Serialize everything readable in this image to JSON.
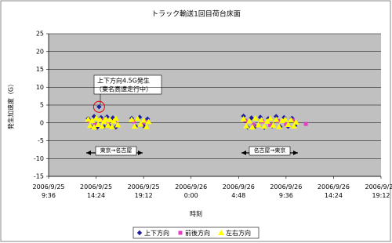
{
  "chart_data": {
    "type": "scatter",
    "title": "トラック輸送1回目荷台床面",
    "x_label": "時刻",
    "y_label": "発生加速度（G）",
    "annotations": [
      "上下方向4.5G発生",
      "（東名高速走行中）",
      "東京→名古屋",
      "名古屋→東京"
    ],
    "xlim": [
      9.6,
      43.2
    ],
    "xticks": [
      {
        "value": 9.6,
        "label": "2006/9/25\n9:36"
      },
      {
        "value": 14.4,
        "label": "2006/9/25\n14:24"
      },
      {
        "value": 19.2,
        "label": "2006/9/25\n19:12"
      },
      {
        "value": 24,
        "label": "2006/9/26\n0:00"
      },
      {
        "value": 28.8,
        "label": "2006/9/26\n4:48"
      },
      {
        "value": 33.6,
        "label": "2006/9/26\n9:36"
      },
      {
        "value": 38.4,
        "label": "2006/9/26\n14:24"
      },
      {
        "value": 43.2,
        "label": "2006/9/26\n19:12"
      }
    ],
    "ylim": [
      -15,
      25
    ],
    "yticks": [
      -15,
      -10,
      -5,
      0,
      5,
      10,
      15,
      20,
      25
    ],
    "grid": true,
    "legend": "bottom",
    "series": [
      {
        "name": "上下方向",
        "color": "#1f1f9f",
        "marker": "diamond",
        "x": [
          13.6,
          13.9,
          14.2,
          14.5,
          14.7,
          14.9,
          15.2,
          15.5,
          15.8,
          16.1,
          16.4,
          18.0,
          18.4,
          18.8,
          19.2,
          19.6,
          29.3,
          29.7,
          30.1,
          30.5,
          31.0,
          31.4,
          31.8,
          32.2,
          32.6,
          33.0,
          33.4,
          33.8,
          34.2,
          34.5
        ],
        "values": [
          1.2,
          -1.0,
          1.8,
          -1.3,
          4.5,
          1.5,
          -1.1,
          1.7,
          -0.9,
          1.4,
          -1.2,
          1.3,
          -1.0,
          1.6,
          -0.8,
          1.1,
          1.9,
          -1.2,
          1.4,
          -1.0,
          1.6,
          -1.3,
          1.2,
          -0.9,
          1.8,
          -1.1,
          1.5,
          -1.0,
          1.3,
          -0.8
        ]
      },
      {
        "name": "前後方向",
        "color": "#e040c0",
        "marker": "square",
        "x": [
          13.7,
          14.3,
          15.0,
          15.6,
          16.3,
          18.2,
          19.0,
          19.5,
          29.5,
          30.3,
          31.2,
          32.0,
          32.8,
          33.6,
          34.3,
          35.6
        ],
        "values": [
          0.5,
          -0.6,
          0.7,
          -0.4,
          0.6,
          0.4,
          -0.5,
          0.3,
          0.6,
          -0.5,
          0.4,
          -0.6,
          0.5,
          -0.4,
          0.7,
          -0.3
        ]
      },
      {
        "name": "左右方向",
        "color": "#ffff00",
        "marker": "triangle",
        "x": [
          13.6,
          13.8,
          14.0,
          14.2,
          14.4,
          14.6,
          14.8,
          15.0,
          15.2,
          15.4,
          15.6,
          15.8,
          16.0,
          16.2,
          16.4,
          16.6,
          18.0,
          18.3,
          18.6,
          18.9,
          19.2,
          19.5,
          19.7,
          29.3,
          29.6,
          29.9,
          30.2,
          30.5,
          30.8,
          31.1,
          31.4,
          31.7,
          32.0,
          32.3,
          32.6,
          32.9,
          33.2,
          33.5,
          33.8,
          34.1,
          34.4,
          34.6
        ],
        "values": [
          1.0,
          -0.8,
          0.6,
          -1.2,
          1.3,
          -0.5,
          0.9,
          -1.0,
          0.4,
          1.1,
          -0.7,
          0.8,
          -1.1,
          0.5,
          1.2,
          -0.6,
          0.9,
          -1.0,
          1.2,
          -0.4,
          0.7,
          -1.1,
          0.3,
          1.1,
          -0.9,
          0.5,
          -1.2,
          1.3,
          -0.6,
          0.8,
          -1.0,
          0.4,
          1.2,
          -0.7,
          0.9,
          -1.1,
          0.6,
          1.0,
          -0.5,
          0.8,
          -0.9,
          0.2
        ]
      }
    ]
  }
}
